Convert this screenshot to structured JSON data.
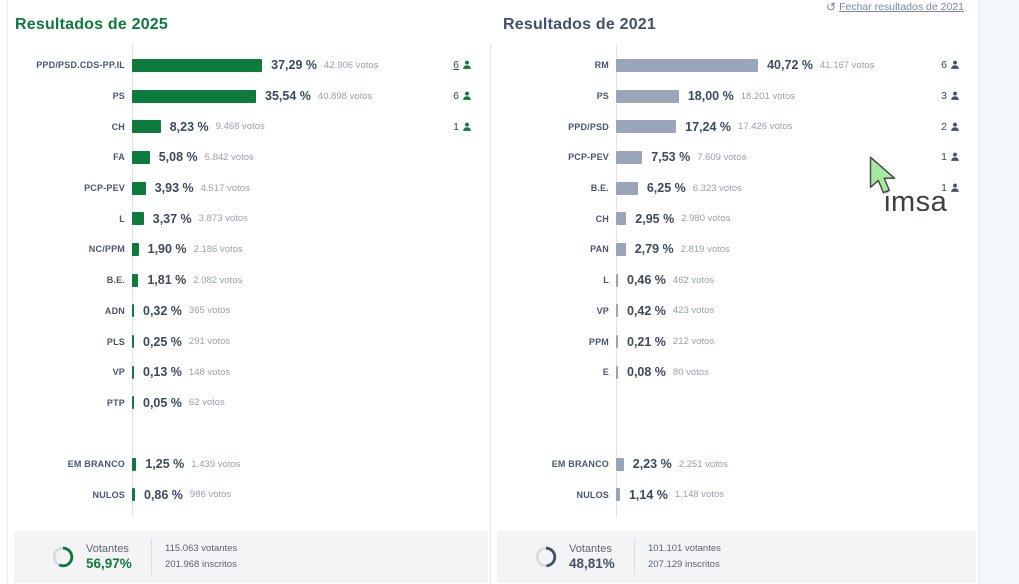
{
  "header": {
    "close_link_label": "Fechar resultados de 2021",
    "undo_icon": "↺"
  },
  "watermark": {
    "text": "imsai"
  },
  "colors": {
    "green": "#0d7a3e",
    "slate": "#44516b",
    "gray_bar": "#9aa5ba",
    "votes_text": "#9aa2b1",
    "link": "#7b87a8"
  },
  "chart_data": [
    {
      "type": "bar",
      "title": "Resultados de 2025",
      "bar_color": "#0d7a3e",
      "title_color": "#0d7a3e",
      "icon_color": "#0d7a3e",
      "turnout_color": "#0d7a3e",
      "legend": "none",
      "grid": "off",
      "rows": [
        {
          "party": "PPD/PSD.CDS-PP.IL",
          "pct": 37.29,
          "pct_label": "37,29 %",
          "votes": 42906,
          "votes_label": "42.906 votos",
          "mandates": 6,
          "mandates_underlined": true
        },
        {
          "party": "PS",
          "pct": 35.54,
          "pct_label": "35,54 %",
          "votes": 40898,
          "votes_label": "40.898 votos",
          "mandates": 6
        },
        {
          "party": "CH",
          "pct": 8.23,
          "pct_label": "8,23 %",
          "votes": 9468,
          "votes_label": "9.468 votos",
          "mandates": 1
        },
        {
          "party": "FA",
          "pct": 5.08,
          "pct_label": "5,08 %",
          "votes": 5842,
          "votes_label": "5.842 votos"
        },
        {
          "party": "PCP-PEV",
          "pct": 3.93,
          "pct_label": "3,93 %",
          "votes": 4517,
          "votes_label": "4.517 votos"
        },
        {
          "party": "L",
          "pct": 3.37,
          "pct_label": "3,37 %",
          "votes": 3873,
          "votes_label": "3.873 votos"
        },
        {
          "party": "NC/PPM",
          "pct": 1.9,
          "pct_label": "1,90 %",
          "votes": 2186,
          "votes_label": "2.186 votos"
        },
        {
          "party": "B.E.",
          "pct": 1.81,
          "pct_label": "1,81 %",
          "votes": 2082,
          "votes_label": "2.082 votos"
        },
        {
          "party": "ADN",
          "pct": 0.32,
          "pct_label": "0,32 %",
          "votes": 365,
          "votes_label": "365 votos"
        },
        {
          "party": "PLS",
          "pct": 0.25,
          "pct_label": "0,25 %",
          "votes": 291,
          "votes_label": "291 votos"
        },
        {
          "party": "VP",
          "pct": 0.13,
          "pct_label": "0,13 %",
          "votes": 148,
          "votes_label": "148 votos"
        },
        {
          "party": "PTP",
          "pct": 0.05,
          "pct_label": "0,05 %",
          "votes": 62,
          "votes_label": "62 votos"
        }
      ],
      "special_rows": [
        {
          "party": "EM BRANCO",
          "pct": 1.25,
          "pct_label": "1,25 %",
          "votes": 1439,
          "votes_label": "1.439 votos"
        },
        {
          "party": "NULOS",
          "pct": 0.86,
          "pct_label": "0,86 %",
          "votes": 986,
          "votes_label": "986 votos"
        }
      ],
      "turnout": {
        "label": "Votantes",
        "pct": 56.97,
        "pct_label": "56,97%",
        "votantes": "115.063 votantes",
        "inscritos": "201.968 inscritos"
      }
    },
    {
      "type": "bar",
      "title": "Resultados de 2021",
      "bar_color": "#9aa5ba",
      "title_color": "#44516b",
      "icon_color": "#44516b",
      "turnout_color": "#44516b",
      "legend": "none",
      "grid": "off",
      "rows": [
        {
          "party": "RM",
          "pct": 40.72,
          "pct_label": "40,72 %",
          "votes": 41167,
          "votes_label": "41.167 votos",
          "mandates": 6
        },
        {
          "party": "PS",
          "pct": 18.0,
          "pct_label": "18,00 %",
          "votes": 18201,
          "votes_label": "18.201 votos",
          "mandates": 3
        },
        {
          "party": "PPD/PSD",
          "pct": 17.24,
          "pct_label": "17,24 %",
          "votes": 17426,
          "votes_label": "17.426 votos",
          "mandates": 2
        },
        {
          "party": "PCP-PEV",
          "pct": 7.53,
          "pct_label": "7,53 %",
          "votes": 7609,
          "votes_label": "7.609 votos",
          "mandates": 1
        },
        {
          "party": "B.E.",
          "pct": 6.25,
          "pct_label": "6,25 %",
          "votes": 6323,
          "votes_label": "6.323 votos",
          "mandates": 1
        },
        {
          "party": "CH",
          "pct": 2.95,
          "pct_label": "2,95 %",
          "votes": 2980,
          "votes_label": "2.980 votos"
        },
        {
          "party": "PAN",
          "pct": 2.79,
          "pct_label": "2,79 %",
          "votes": 2819,
          "votes_label": "2.819 votos"
        },
        {
          "party": "L",
          "pct": 0.46,
          "pct_label": "0,46 %",
          "votes": 462,
          "votes_label": "462 votos"
        },
        {
          "party": "VP",
          "pct": 0.42,
          "pct_label": "0,42 %",
          "votes": 423,
          "votes_label": "423 votos"
        },
        {
          "party": "PPM",
          "pct": 0.21,
          "pct_label": "0,21 %",
          "votes": 212,
          "votes_label": "212 votos"
        },
        {
          "party": "E",
          "pct": 0.08,
          "pct_label": "0,08 %",
          "votes": 80,
          "votes_label": "80 votos"
        }
      ],
      "special_rows": [
        {
          "party": "EM BRANCO",
          "pct": 2.23,
          "pct_label": "2,23 %",
          "votes": 2251,
          "votes_label": "2.251 votos"
        },
        {
          "party": "NULOS",
          "pct": 1.14,
          "pct_label": "1,14 %",
          "votes": 1148,
          "votes_label": "1.148 votos"
        }
      ],
      "turnout": {
        "label": "Votantes",
        "pct": 48.81,
        "pct_label": "48,81%",
        "votantes": "101.101 votantes",
        "inscritos": "207.129 inscritos"
      }
    }
  ]
}
